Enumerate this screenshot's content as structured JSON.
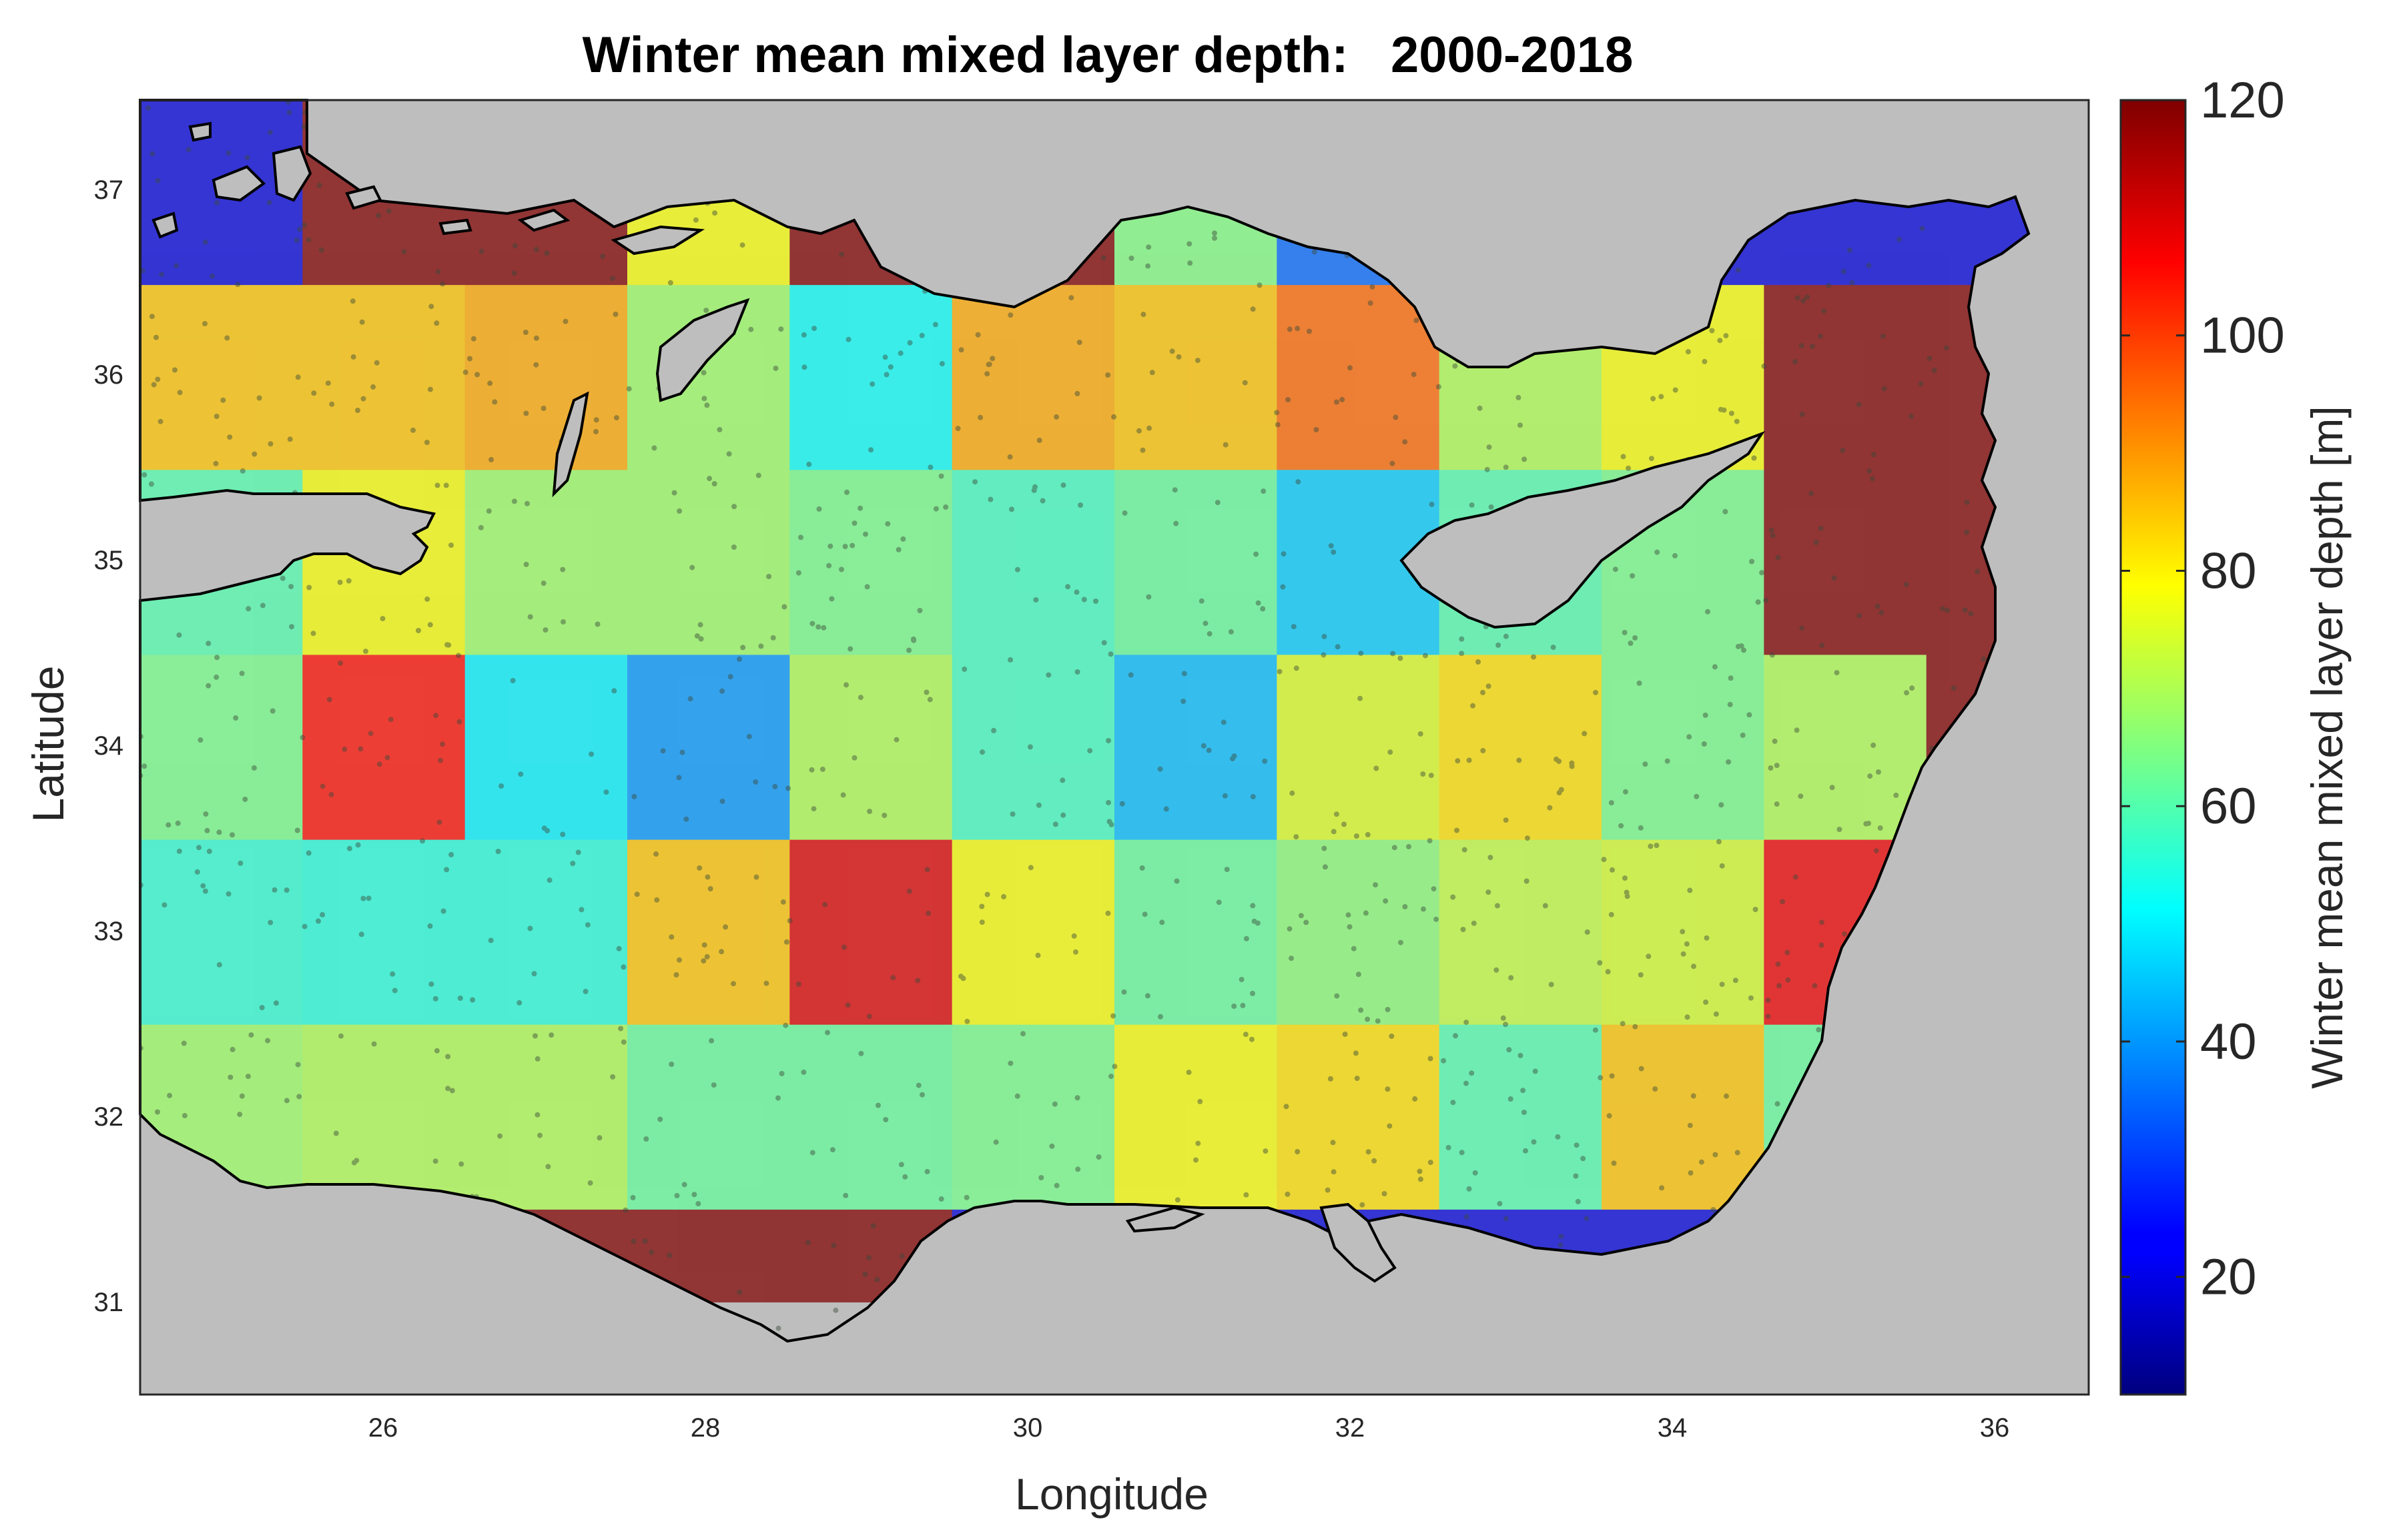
{
  "chart_data": {
    "type": "heatmap",
    "title": "Winter mean mixed layer depth:   2000-2018",
    "xlabel": "Longitude",
    "ylabel": "Latitude",
    "xlim": [
      24.5,
      36.5
    ],
    "ylim": [
      30.5,
      37.5
    ],
    "xticks": [
      "26",
      "28",
      "30",
      "32",
      "34",
      "36"
    ],
    "yticks": [
      "31",
      "32",
      "33",
      "34",
      "35",
      "36",
      "37"
    ],
    "colorbar": {
      "label": "Winter mean mixed layer depth [m]",
      "range": [
        10,
        120
      ],
      "ticks": [
        "20",
        "40",
        "60",
        "80",
        "100",
        "120"
      ],
      "colormap": "jet"
    },
    "land_color": "#bebebe",
    "grid_x_edges": [
      24.5,
      25.5,
      26.5,
      27.5,
      28.5,
      29.5,
      30.5,
      31.5,
      32.5,
      33.5,
      34.5,
      35.5,
      36.5
    ],
    "grid_y_edges": [
      31,
      31.5,
      32.5,
      33.5,
      34.5,
      35.5,
      36.5,
      37.5
    ],
    "rows_top_to_bottom": [
      {
        "lat_range": [
          36.5,
          37.5
        ],
        "values": [
          20,
          120,
          120,
          78,
          120,
          120,
          65,
          35,
          20,
          20,
          20,
          20
        ]
      },
      {
        "lat_range": [
          35.5,
          36.5
        ],
        "values": [
          85,
          85,
          88,
          68,
          52,
          88,
          85,
          95,
          70,
          78,
          120,
          120
        ]
      },
      {
        "lat_range": [
          34.5,
          35.5
        ],
        "values": [
          60,
          78,
          68,
          68,
          64,
          58,
          62,
          46,
          60,
          64,
          120,
          120
        ]
      },
      {
        "lat_range": [
          33.5,
          34.5
        ],
        "values": [
          64,
          105,
          50,
          40,
          70,
          58,
          44,
          75,
          82,
          64,
          70,
          120
        ]
      },
      {
        "lat_range": [
          32.5,
          33.5
        ],
        "values": [
          56,
          55,
          55,
          85,
          110,
          78,
          62,
          66,
          72,
          74,
          108,
          108
        ]
      },
      {
        "lat_range": [
          31.5,
          32.5
        ],
        "values": [
          68,
          70,
          70,
          62,
          62,
          64,
          78,
          82,
          60,
          85,
          62,
          62
        ]
      },
      {
        "lat_range": [
          31.0,
          31.5
        ],
        "values": [
          68,
          70,
          120,
          120,
          120,
          20,
          20,
          20,
          20,
          20,
          20,
          20
        ]
      }
    ]
  }
}
